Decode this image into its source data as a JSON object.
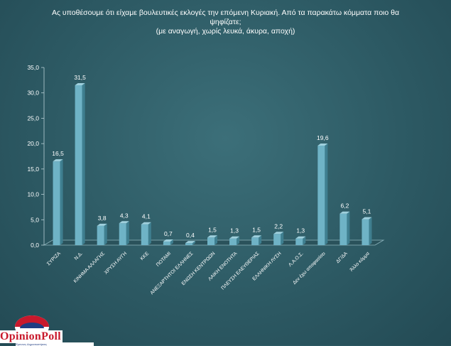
{
  "title": {
    "line1": "Ας υποθέσουμε ότι είχαμε βουλευτικές εκλογές την επόμενη Κυριακή. Από τα παρακάτω κόμματα ποιο θα",
    "line2": "ψηφίζατε;",
    "line3": "(με αναγωγή, χωρίς λευκά, άκυρα, αποχή)"
  },
  "chart_data": {
    "type": "bar",
    "categories": [
      "ΣΥΡΙΖΑ",
      "Ν.Δ.",
      "ΚΙΝΗΜΑ ΑΛΛΑΓΗΣ",
      "ΧΡΥΣΗ ΑΥΓΗ",
      "ΚΚΕ",
      "ΠΟΤΑΜΙ",
      "ΑΝΕΞΑΡΤΗΤΟΙ ΕΛΛΗΝΕΣ",
      "ΕΝΩΣΗ ΚΕΝΤΡΩΩΝ",
      "ΛΑΙΚΗ ΕΝΟΤΗΤΑ",
      "ΠΛΕΥΣΗ ΕΛΕΥΘΕΡΙΑΣ",
      "ΕΛΛΗΝΙΚΗ ΛΥΣΗ",
      "Λ.Α.Ο.Σ.",
      "Δεν έχω αποφασίσει",
      "ΔΓ/ΔΑ",
      "Άλλο κόμμα"
    ],
    "values": [
      16.5,
      31.5,
      3.8,
      4.3,
      4.1,
      0.7,
      0.4,
      1.5,
      1.3,
      1.5,
      2.2,
      1.3,
      19.6,
      6.2,
      5.1
    ],
    "value_labels": [
      "16,5",
      "31,5",
      "3,8",
      "4,3",
      "4,1",
      "0,7",
      "0,4",
      "1,5",
      "1,3",
      "1,5",
      "2,2",
      "1,3",
      "19,6",
      "6,2",
      "5,1"
    ],
    "yticks": [
      "0,0",
      "5,0",
      "10,0",
      "15,0",
      "20,0",
      "25,0",
      "30,0",
      "35,0"
    ],
    "ylim": [
      0,
      35
    ],
    "bar_color": "#6fb3c6",
    "grid": false
  },
  "logo": {
    "name": "OpinionPoll",
    "subtitle": "Έρευνες Δημοσκοπήσεις"
  }
}
